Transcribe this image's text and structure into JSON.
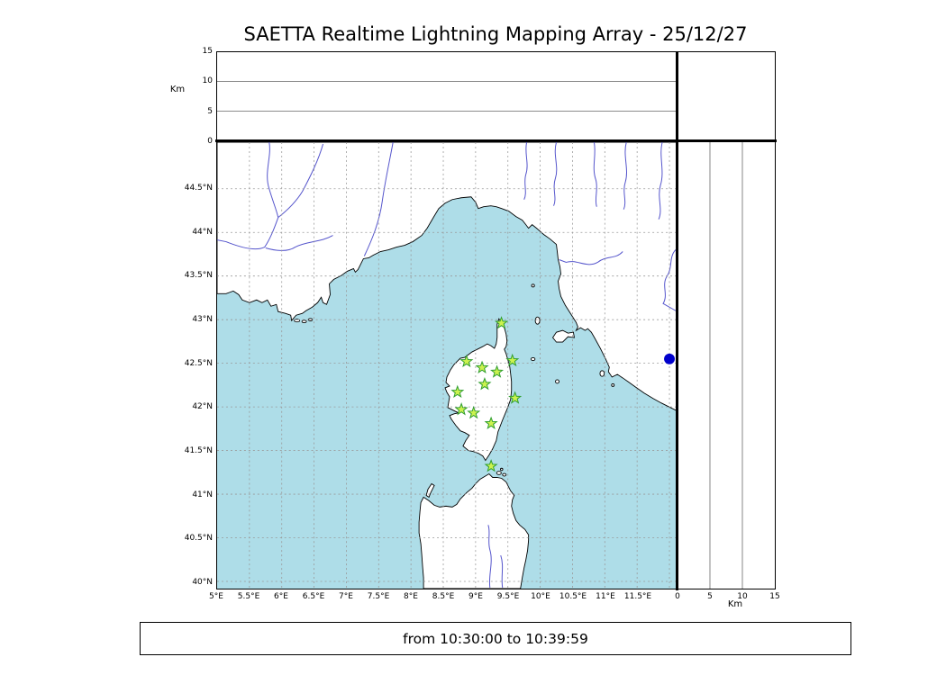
{
  "title": "SAETTA Realtime Lightning Mapping Array - 25/12/27",
  "status_bar": {
    "text": "from 10:30:00 to 10:39:59"
  },
  "map": {
    "lon_ticks": [
      {
        "label": "5°E",
        "lon": 5
      },
      {
        "label": "5.5°E",
        "lon": 5.5
      },
      {
        "label": "6°E",
        "lon": 6
      },
      {
        "label": "6.5°E",
        "lon": 6.5
      },
      {
        "label": "7°E",
        "lon": 7
      },
      {
        "label": "7.5°E",
        "lon": 7.5
      },
      {
        "label": "8°E",
        "lon": 8
      },
      {
        "label": "8.5°E",
        "lon": 8.5
      },
      {
        "label": "9°E",
        "lon": 9
      },
      {
        "label": "9.5°E",
        "lon": 9.5
      },
      {
        "label": "10°E",
        "lon": 10
      },
      {
        "label": "10.5°E",
        "lon": 10.5
      },
      {
        "label": "11°E",
        "lon": 11
      },
      {
        "label": "11.5°E",
        "lon": 11.5
      }
    ],
    "lat_ticks": [
      {
        "label": "44.5°N",
        "lat": 44.5
      },
      {
        "label": "44°N",
        "lat": 44
      },
      {
        "label": "43.5°N",
        "lat": 43.5
      },
      {
        "label": "43°N",
        "lat": 43
      },
      {
        "label": "42.5°N",
        "lat": 42.5
      },
      {
        "label": "42°N",
        "lat": 42
      },
      {
        "label": "41.5°N",
        "lat": 41.5
      },
      {
        "label": "41°N",
        "lat": 41
      },
      {
        "label": "40.5°N",
        "lat": 40.5
      },
      {
        "label": "40°N",
        "lat": 40
      }
    ],
    "lon_range_deg_e": [
      5.0,
      12.1
    ],
    "lat_range_deg_n": [
      39.9,
      45.0
    ],
    "grid_step_deg": 0.5,
    "sea_color": "#aedde8",
    "land_color": "#ffffff",
    "coast_color": "#000000",
    "river_color": "#5555cc",
    "grid_color": "#999999"
  },
  "altitude_axis": {
    "label": "Km",
    "ticks_km": [
      0,
      5,
      10,
      15
    ],
    "max_km": 15,
    "ref_line_color": "#666666"
  },
  "stations": {
    "marker": "star-icon",
    "fill_color": "#ccf24f",
    "edge_color": "#2f9e2f",
    "points": [
      {
        "lon": 9.4,
        "lat": 42.96
      },
      {
        "lon": 8.86,
        "lat": 42.52
      },
      {
        "lon": 9.1,
        "lat": 42.45
      },
      {
        "lon": 9.57,
        "lat": 42.53
      },
      {
        "lon": 9.33,
        "lat": 42.4
      },
      {
        "lon": 9.14,
        "lat": 42.26
      },
      {
        "lon": 8.72,
        "lat": 42.17
      },
      {
        "lon": 9.61,
        "lat": 42.1
      },
      {
        "lon": 8.78,
        "lat": 41.97
      },
      {
        "lon": 8.97,
        "lat": 41.93
      },
      {
        "lon": 9.24,
        "lat": 41.81
      },
      {
        "lon": 9.24,
        "lat": 41.32
      }
    ]
  },
  "detection": {
    "marker": "circle-icon",
    "color": "#0000cc",
    "lon": 12.0,
    "lat": 42.55
  }
}
